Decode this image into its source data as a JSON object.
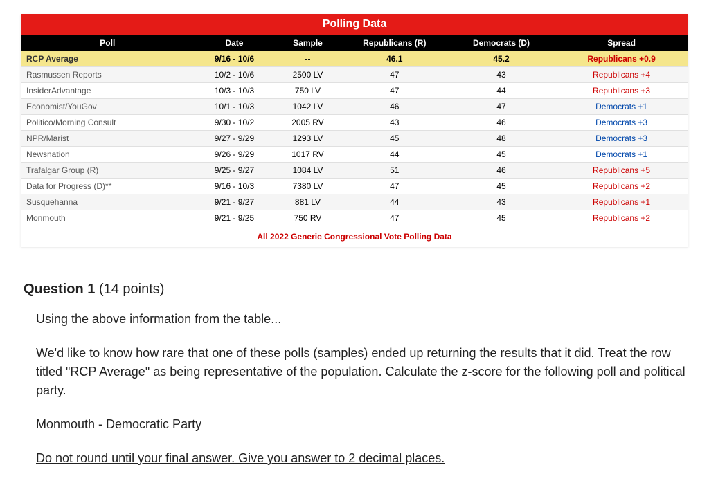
{
  "table": {
    "title": "Polling Data",
    "headers": {
      "poll": "Poll",
      "date": "Date",
      "sample": "Sample",
      "republicans": "Republicans (R)",
      "democrats": "Democrats (D)",
      "spread": "Spread"
    },
    "average_row": {
      "poll": "RCP Average",
      "date": "9/16 - 10/6",
      "sample": "--",
      "republicans": "46.1",
      "democrats": "45.2",
      "spread": "Republicans +0.9"
    },
    "rows": [
      {
        "poll": "Rasmussen Reports",
        "date": "10/2 - 10/6",
        "sample": "2500 LV",
        "republicans": "47",
        "democrats": "43",
        "spread": "Republicans +4",
        "spread_party": "rep"
      },
      {
        "poll": "InsiderAdvantage",
        "date": "10/3 - 10/3",
        "sample": "750 LV",
        "republicans": "47",
        "democrats": "44",
        "spread": "Republicans +3",
        "spread_party": "rep"
      },
      {
        "poll": "Economist/YouGov",
        "date": "10/1 - 10/3",
        "sample": "1042 LV",
        "republicans": "46",
        "democrats": "47",
        "spread": "Democrats +1",
        "spread_party": "dem"
      },
      {
        "poll": "Politico/Morning Consult",
        "date": "9/30 - 10/2",
        "sample": "2005 RV",
        "republicans": "43",
        "democrats": "46",
        "spread": "Democrats +3",
        "spread_party": "dem"
      },
      {
        "poll": "NPR/Marist",
        "date": "9/27 - 9/29",
        "sample": "1293 LV",
        "republicans": "45",
        "democrats": "48",
        "spread": "Democrats +3",
        "spread_party": "dem"
      },
      {
        "poll": "Newsnation",
        "date": "9/26 - 9/29",
        "sample": "1017 RV",
        "republicans": "44",
        "democrats": "45",
        "spread": "Democrats +1",
        "spread_party": "dem"
      },
      {
        "poll": "Trafalgar Group (R)",
        "date": "9/25 - 9/27",
        "sample": "1084 LV",
        "republicans": "51",
        "democrats": "46",
        "spread": "Republicans +5",
        "spread_party": "rep"
      },
      {
        "poll": "Data for Progress (D)**",
        "date": "9/16 - 10/3",
        "sample": "7380 LV",
        "republicans": "47",
        "democrats": "45",
        "spread": "Republicans +2",
        "spread_party": "rep"
      },
      {
        "poll": "Susquehanna",
        "date": "9/21 - 9/27",
        "sample": "881 LV",
        "republicans": "44",
        "democrats": "43",
        "spread": "Republicans +1",
        "spread_party": "rep"
      },
      {
        "poll": "Monmouth",
        "date": "9/21 - 9/25",
        "sample": "750 RV",
        "republicans": "47",
        "democrats": "45",
        "spread": "Republicans +2",
        "spread_party": "rep"
      }
    ],
    "footer_link": "All 2022 Generic Congressional Vote Polling Data"
  },
  "question": {
    "label": "Question 1",
    "points": "(14 points)",
    "intro": "Using the above information from the table...",
    "body": "We'd like to know how rare that one of these polls (samples) ended up returning the results that it did. Treat the row titled \"RCP Average\" as being representative of the population. Calculate the z-score for the following poll and political party.",
    "target": "Monmouth - Democratic Party",
    "instruction": "Do not round until your final answer. Give you answer to 2 decimal places."
  },
  "colors": {
    "title_bar_bg": "#e41b17",
    "header_bg": "#000000",
    "avg_row_bg": "#f5e68c",
    "rep_color": "#cc0000",
    "dem_color": "#0047ab"
  }
}
